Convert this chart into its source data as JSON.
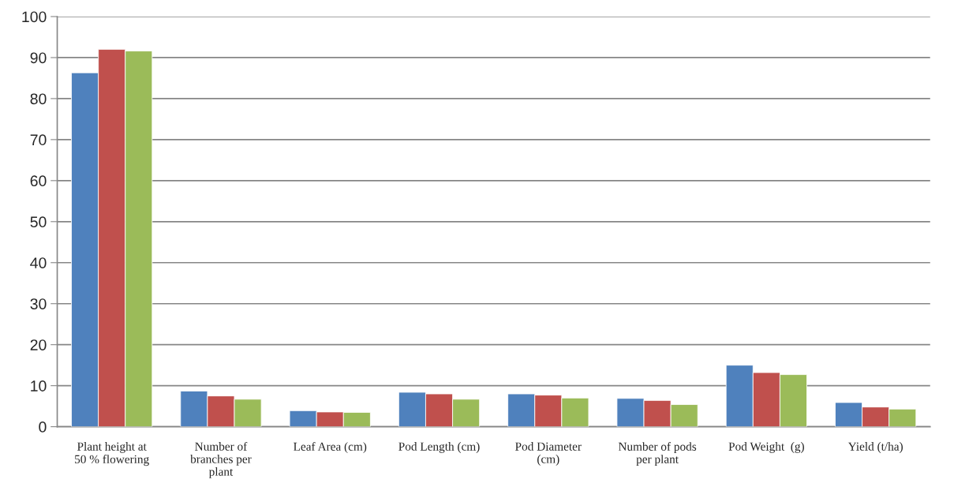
{
  "chart_data": {
    "type": "bar",
    "categories": [
      "Plant height at 50 % flowering",
      "Number of branches per plant",
      "Leaf Area (cm)",
      "Pod Length (cm)",
      "Pod Diameter (cm)",
      "Number of pods per plant",
      "Pod Weight  (g)",
      "Yield (t/ha)"
    ],
    "series": [
      {
        "color": "#4f81bd",
        "values": [
          86.3,
          8.7,
          3.9,
          8.4,
          8.0,
          6.9,
          15.0,
          5.9
        ]
      },
      {
        "color": "#c0504d",
        "values": [
          92.0,
          7.5,
          3.6,
          8.0,
          7.7,
          6.4,
          13.2,
          4.8
        ]
      },
      {
        "color": "#9bbb59",
        "values": [
          91.6,
          6.7,
          3.5,
          6.7,
          7.0,
          5.4,
          12.7,
          4.3
        ]
      }
    ],
    "ylim": [
      0,
      100
    ],
    "yticks": [
      0,
      10,
      20,
      30,
      40,
      50,
      60,
      70,
      80,
      90,
      100
    ],
    "grid": "y",
    "legend": false
  }
}
